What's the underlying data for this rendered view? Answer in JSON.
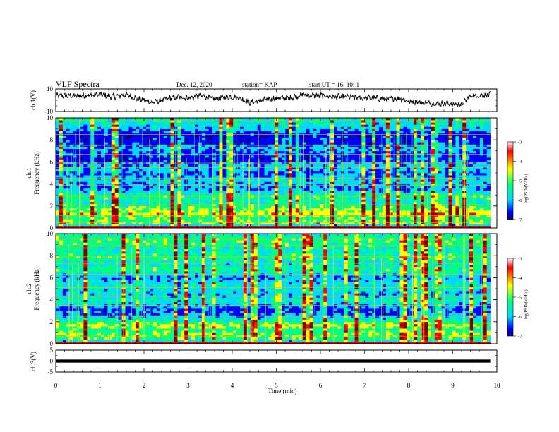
{
  "header": {
    "title": "VLF Spectra",
    "date": "Dec. 12, 2020",
    "station": "station= KAP",
    "start_time": "start  UT =   16: 10: 1"
  },
  "chart_data": [
    {
      "id": "ch1-waveform",
      "type": "line",
      "ylabel": "ch.1(V)",
      "ylim": [
        -10,
        10
      ],
      "yticks": [
        "10",
        "-10"
      ],
      "x_range": [
        0,
        9.85
      ],
      "envelope": {
        "x": [
          0,
          0.5,
          1.0,
          1.3,
          1.6,
          1.8,
          2.0,
          2.2,
          2.5,
          2.8,
          3.0,
          3.3,
          3.6,
          3.9,
          4.1,
          4.4,
          4.7,
          5.0,
          5.3,
          5.6,
          5.9,
          6.1,
          6.3,
          6.6,
          6.9,
          7.2,
          7.5,
          7.8,
          8.0,
          8.3,
          8.6,
          8.9,
          9.2,
          9.4,
          9.6,
          9.85
        ],
        "y": [
          4,
          4,
          5,
          3,
          5,
          2,
          0,
          -2,
          1,
          3,
          2,
          4,
          1,
          3,
          3,
          -2,
          0,
          2,
          2,
          5,
          4,
          4,
          3,
          3,
          2,
          2,
          1,
          2,
          -1,
          -2,
          -3,
          -3,
          -4,
          4,
          4,
          5
        ]
      },
      "series_color": "#000000"
    },
    {
      "id": "ch1-spectrogram",
      "type": "heatmap",
      "ylabel": "ch.1\nFrequency (kHz)",
      "ylim": [
        0,
        10
      ],
      "yticks": [
        "0",
        "2",
        "4",
        "6",
        "8",
        "10"
      ],
      "x_range": [
        0,
        9.85
      ],
      "row_profile": [
        1.4,
        0.4,
        0.62,
        0.58,
        0.55,
        0.58,
        0.68,
        0.62,
        0.6,
        0.55,
        0.5,
        0.45,
        0.45,
        0.5,
        0.5,
        0.45,
        0.38,
        0.33,
        0.3,
        0.32,
        0.35,
        0.38,
        0.36,
        0.32,
        0.28,
        0.3,
        0.34,
        0.35,
        0.33,
        0.3,
        0.22,
        0.22,
        0.24,
        0.26,
        0.28,
        0.3,
        0.34,
        0.3,
        0.25,
        0.22,
        0.2,
        0.2,
        0.22,
        0.25,
        0.32,
        0.36,
        0.4,
        0.42,
        0.44,
        0.45
      ],
      "line_rows": [
        0,
        2,
        5,
        10,
        14,
        19,
        22,
        27,
        29,
        33,
        37,
        42,
        48
      ],
      "colorbar": {
        "label": "log(PSD)(V²/Hz)",
        "ticks": [
          "-3",
          "-4",
          "-5",
          "-6",
          "-7"
        ],
        "range": [
          -7,
          -3
        ]
      }
    },
    {
      "id": "ch2-spectrogram",
      "type": "heatmap",
      "ylabel": "ch.2\nFrequency (kHz)",
      "ylim": [
        0,
        10
      ],
      "yticks": [
        "0",
        "2",
        "4",
        "6",
        "8",
        "10"
      ],
      "x_range": [
        0,
        9.85
      ],
      "row_profile": [
        1.4,
        0.42,
        0.55,
        0.58,
        0.6,
        0.55,
        0.5,
        0.58,
        0.62,
        0.55,
        0.48,
        0.4,
        0.35,
        0.3,
        0.26,
        0.26,
        0.3,
        0.34,
        0.4,
        0.44,
        0.42,
        0.38,
        0.35,
        0.36,
        0.4,
        0.42,
        0.42,
        0.4,
        0.36,
        0.32,
        0.35,
        0.4,
        0.45,
        0.5,
        0.48,
        0.44,
        0.42,
        0.45,
        0.5,
        0.52,
        0.5,
        0.46,
        0.44,
        0.46,
        0.5,
        0.52,
        0.54,
        0.52,
        0.5,
        0.48
      ],
      "line_rows": [
        0,
        3,
        8,
        12,
        17,
        21,
        25,
        31,
        36,
        39,
        44,
        47
      ],
      "colorbar": {
        "label": "log(PSD)(V²/Hz)",
        "ticks": [
          "-3",
          "-4",
          "-5",
          "-6",
          "-7"
        ],
        "range": [
          -7,
          -3
        ]
      }
    },
    {
      "id": "ch3-waveform",
      "type": "line",
      "ylabel": "ch.3(V)",
      "ylim": [
        -5,
        5
      ],
      "yticks": [
        "5",
        "0",
        "-5"
      ],
      "x_range": [
        0,
        9.85
      ],
      "envelope": {
        "x": [
          0,
          9.85
        ],
        "y": [
          0,
          0
        ]
      },
      "band_halfwidth": 0.7,
      "series_color": "#000000"
    }
  ],
  "x_axis": {
    "label": "Time  (min)",
    "ticks": [
      "0",
      "1",
      "2",
      "3",
      "4",
      "5",
      "6",
      "7",
      "8",
      "9",
      "10"
    ],
    "range": [
      0,
      10
    ]
  },
  "colormap": [
    "#800000",
    "#ff0000",
    "#ffff00",
    "#00ff80",
    "#00d8ff",
    "#0000ff",
    "#000080"
  ]
}
